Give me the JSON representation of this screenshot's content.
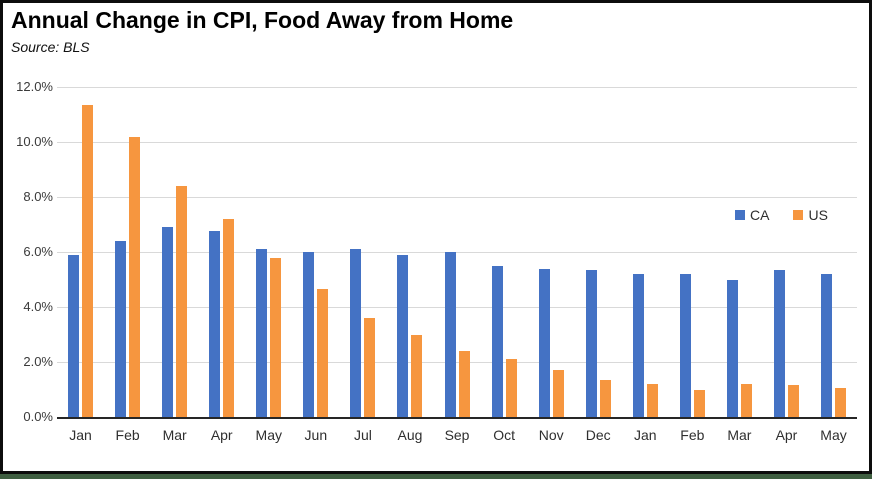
{
  "colors": {
    "ca_blue": "#4472C4",
    "us_orange": "#F6963F",
    "gridline_gray": "#D9D9D9",
    "axis_black": "#262626",
    "bottom_strip_green": "#3F5F41"
  },
  "chart_data": {
    "type": "bar",
    "title": "Annual Change in CPI, Food Away from Home",
    "source": "Source:  BLS",
    "categories": [
      "Jan",
      "Feb",
      "Mar",
      "Apr",
      "May",
      "Jun",
      "Jul",
      "Aug",
      "Sep",
      "Oct",
      "Nov",
      "Dec",
      "Jan",
      "Feb",
      "Mar",
      "Apr",
      "May"
    ],
    "series": [
      {
        "name": "CA",
        "color": "#4472C4",
        "values": [
          5.9,
          6.4,
          6.9,
          6.75,
          6.1,
          6.0,
          6.1,
          5.9,
          6.0,
          5.5,
          5.4,
          5.35,
          5.2,
          5.2,
          5.0,
          5.35,
          5.2
        ]
      },
      {
        "name": "US",
        "color": "#F6963F",
        "values": [
          11.35,
          10.2,
          8.4,
          7.2,
          5.8,
          4.65,
          3.6,
          3.0,
          2.4,
          2.1,
          1.7,
          1.35,
          1.2,
          1.0,
          1.2,
          1.15,
          1.05
        ]
      }
    ],
    "y_ticks": [
      "12.0%",
      "10.0%",
      "8.0%",
      "6.0%",
      "4.0%",
      "2.0%",
      "0.0%"
    ],
    "ylim": [
      0,
      12
    ],
    "grid": true,
    "legend_position": "middle-right",
    "legend_entries": [
      "CA",
      "US"
    ]
  }
}
